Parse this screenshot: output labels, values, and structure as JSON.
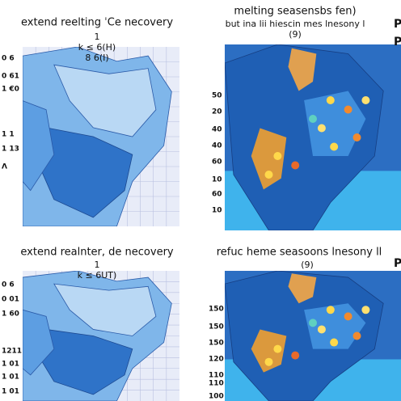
{
  "panels": [
    {
      "title": "extend reelting ˈCe necovery",
      "subtitle": [
        "1",
        "k ≤ 6(H)",
        "8 6(I)"
      ],
      "axis_labels": [
        "0 6",
        "0 61",
        "1 €0",
        "1 1",
        "1 13",
        "Λ"
      ],
      "side_labels": []
    },
    {
      "title": "melting seasensbs fen)",
      "subtitle": [
        "but ina lii hiescin mes lnesony l",
        "(9)"
      ],
      "axis_labels": [
        "50",
        "20",
        "40",
        "40",
        "60",
        "10",
        "60",
        "10"
      ],
      "side_labels": [
        "P",
        "P"
      ]
    },
    {
      "title": "extend realnter, de necovery",
      "subtitle": [
        "1",
        "k ≤ 6UT)"
      ],
      "axis_labels": [
        "0 6",
        "0 01",
        "1 60",
        "1211",
        "1 01",
        "1 01",
        "1 01"
      ],
      "side_labels": []
    },
    {
      "title": "refuc heme seasoons lnesony ll",
      "subtitle": [
        "(9)"
      ],
      "axis_labels": [
        "150",
        "150",
        "150",
        "120",
        "110",
        "110",
        "100"
      ],
      "side_labels": [
        "P"
      ]
    }
  ]
}
